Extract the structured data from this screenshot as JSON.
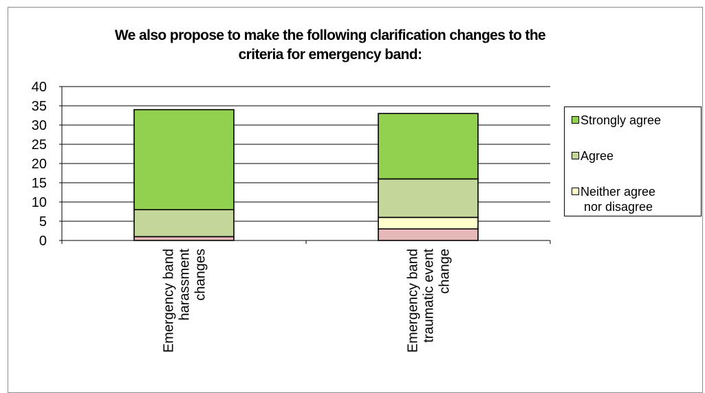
{
  "chart_data": {
    "type": "bar",
    "stacked": true,
    "title": "We also propose to make the following clarification changes to the criteria for emergency band:",
    "title_lines": [
      "We also propose to make the following clarification changes to the",
      "criteria for emergency band:"
    ],
    "categories": [
      "Emergency band harassment changes",
      "Emergency band traumatic event change"
    ],
    "category_lines": [
      [
        "Emergency band",
        "harassment",
        "changes"
      ],
      [
        "Emergency band",
        "traumatic event",
        "change"
      ]
    ],
    "series": [
      {
        "values": [
          1,
          3
        ],
        "color": "#e6b9b8"
      },
      {
        "name": "Neither agree nor disagree",
        "values": [
          0,
          3
        ],
        "color": "#ffffcc"
      },
      {
        "name": "Agree",
        "values": [
          7,
          10
        ],
        "color": "#c4d79b"
      },
      {
        "name": "Strongly agree",
        "values": [
          26,
          17
        ],
        "color": "#92d050"
      }
    ],
    "ylim": [
      0,
      40
    ],
    "yticks": [
      "0",
      "5",
      "10",
      "15",
      "20",
      "25",
      "30",
      "35",
      "40"
    ],
    "grid": true,
    "legend_placement": "right",
    "legend": [
      {
        "lines": [
          "Strongly agree"
        ],
        "color": "#92d050"
      },
      {
        "lines": [
          "Agree"
        ],
        "color": "#c4d79b"
      },
      {
        "lines": [
          "Neither agree",
          " nor disagree"
        ],
        "color": "#ffffcc"
      }
    ]
  }
}
